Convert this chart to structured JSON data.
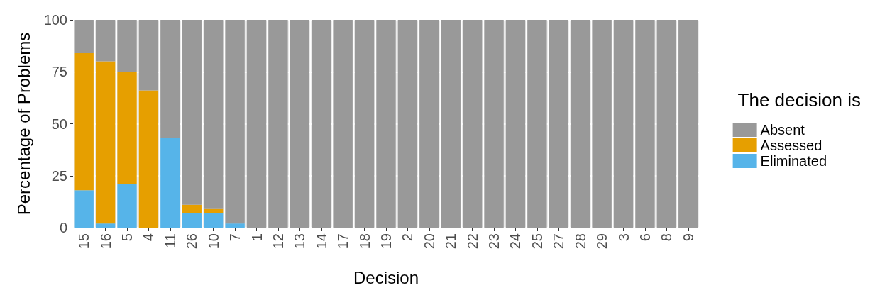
{
  "chart_data": {
    "type": "bar",
    "stacked": true,
    "xlabel": "Decision",
    "ylabel": "Percentage of Problems",
    "legend_title": "The decision is",
    "categories": [
      "15",
      "16",
      "5",
      "4",
      "11",
      "26",
      "10",
      "7",
      "1",
      "12",
      "13",
      "14",
      "17",
      "18",
      "19",
      "2",
      "20",
      "21",
      "22",
      "23",
      "24",
      "25",
      "27",
      "28",
      "29",
      "3",
      "6",
      "8",
      "9"
    ],
    "series": [
      {
        "name": "Eliminated",
        "color": "#56b4e9",
        "values": [
          18,
          2,
          21,
          0,
          43,
          7,
          7,
          2,
          0,
          0,
          0,
          0,
          0,
          0,
          0,
          0,
          0,
          0,
          0,
          0,
          0,
          0,
          0,
          0,
          0,
          0,
          0,
          0,
          0
        ]
      },
      {
        "name": "Assessed",
        "color": "#e69f00",
        "values": [
          66,
          78,
          54,
          66,
          0,
          4,
          2,
          0,
          0,
          0,
          0,
          0,
          0,
          0,
          0,
          0,
          0,
          0,
          0,
          0,
          0,
          0,
          0,
          0,
          0,
          0,
          0,
          0,
          0
        ]
      },
      {
        "name": "Absent",
        "color": "#999999",
        "values": [
          16,
          20,
          25,
          34,
          57,
          89,
          91,
          98,
          100,
          100,
          100,
          100,
          100,
          100,
          100,
          100,
          100,
          100,
          100,
          100,
          100,
          100,
          100,
          100,
          100,
          100,
          100,
          100,
          100
        ]
      }
    ],
    "ylim": [
      0,
      100
    ],
    "yticks": [
      0,
      25,
      50,
      75,
      100
    ],
    "grid": true,
    "legend": "right"
  }
}
